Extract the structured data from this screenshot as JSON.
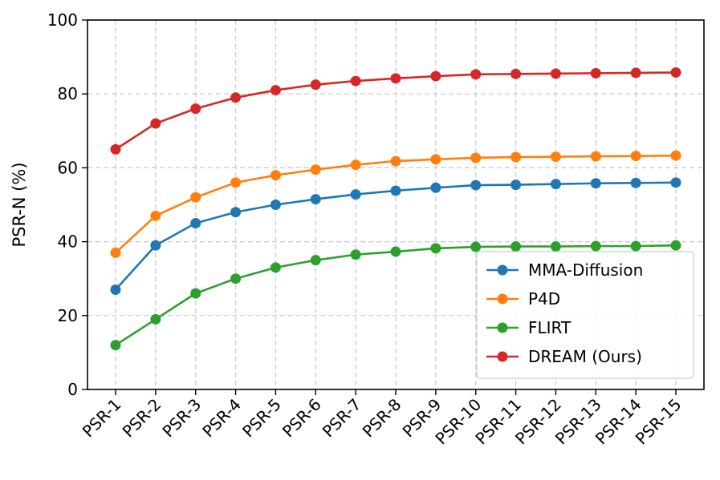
{
  "chart_data": {
    "type": "line",
    "title": "",
    "xlabel": "",
    "ylabel": "PSR-N (%)",
    "ylim": [
      0,
      100
    ],
    "yticks": [
      0,
      20,
      40,
      60,
      80,
      100
    ],
    "grid": true,
    "grid_style": "dashed",
    "legend_position": "lower-right",
    "categories": [
      "PSR-1",
      "PSR-2",
      "PSR-3",
      "PSR-4",
      "PSR-5",
      "PSR-6",
      "PSR-7",
      "PSR-8",
      "PSR-9",
      "PSR-10",
      "PSR-11",
      "PSR-12",
      "PSR-13",
      "PSR-14",
      "PSR-15"
    ],
    "series": [
      {
        "name": "MMA-Diffusion",
        "color": "#1f77b4",
        "values": [
          27,
          39,
          45,
          48,
          50,
          51.5,
          52.8,
          53.8,
          54.6,
          55.3,
          55.4,
          55.6,
          55.8,
          55.9,
          56.0
        ]
      },
      {
        "name": "P4D",
        "color": "#ff7f0e",
        "values": [
          37,
          47,
          52,
          56,
          58,
          59.5,
          60.8,
          61.8,
          62.3,
          62.7,
          62.9,
          63.0,
          63.1,
          63.2,
          63.3
        ]
      },
      {
        "name": "FLIRT",
        "color": "#2ca02c",
        "values": [
          12,
          19,
          26,
          30,
          33,
          35,
          36.5,
          37.3,
          38.2,
          38.6,
          38.7,
          38.7,
          38.8,
          38.8,
          39.0
        ]
      },
      {
        "name": "DREAM (Ours)",
        "color": "#d62728",
        "values": [
          65,
          72,
          76,
          79,
          81,
          82.5,
          83.5,
          84.2,
          84.8,
          85.3,
          85.4,
          85.5,
          85.6,
          85.7,
          85.8
        ]
      }
    ]
  }
}
